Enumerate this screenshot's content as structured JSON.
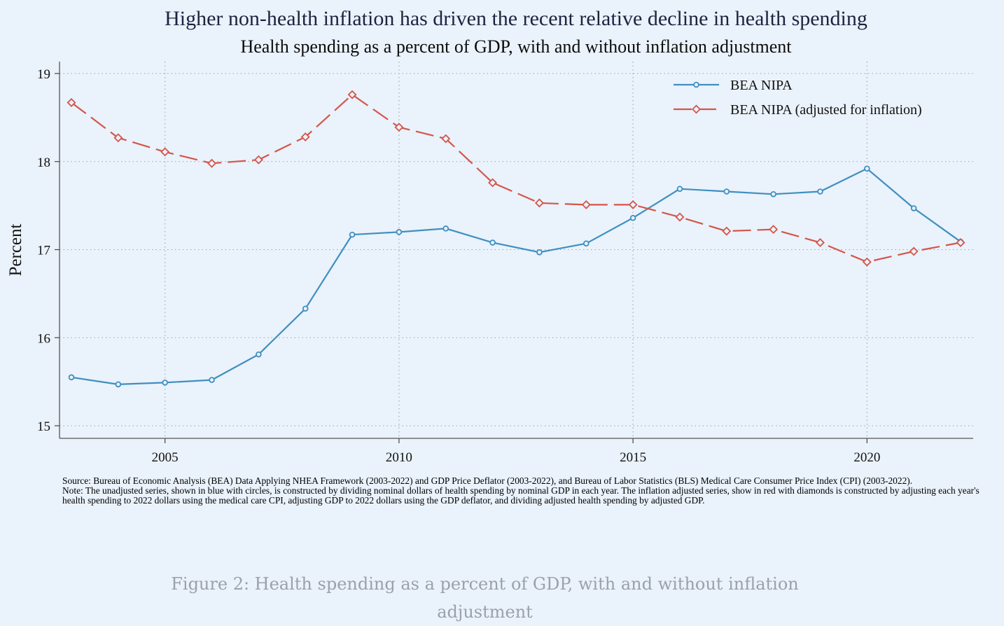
{
  "chart_data": {
    "type": "line",
    "title": "Higher non-health inflation has driven the recent relative decline in health spending",
    "subtitle": "Health spending as a percent of GDP, with and without inflation adjustment",
    "xlabel": "",
    "ylabel": "Percent",
    "xlim": [
      2003,
      2022
    ],
    "ylim": [
      15,
      19
    ],
    "x_ticks": [
      2005,
      2010,
      2015,
      2020
    ],
    "y_ticks": [
      15,
      16,
      17,
      18,
      19
    ],
    "grid": true,
    "legend_position": "top-right",
    "x": [
      2003,
      2004,
      2005,
      2006,
      2007,
      2008,
      2009,
      2010,
      2011,
      2012,
      2013,
      2014,
      2015,
      2016,
      2017,
      2018,
      2019,
      2020,
      2021,
      2022
    ],
    "series": [
      {
        "name": "BEA NIPA",
        "color": "#3f8fc0",
        "marker": "circle",
        "line": "solid",
        "values": [
          15.55,
          15.47,
          15.49,
          15.52,
          15.81,
          16.33,
          17.17,
          17.2,
          17.24,
          17.08,
          16.97,
          17.07,
          17.36,
          17.69,
          17.66,
          17.63,
          17.66,
          17.92,
          17.47,
          17.09
        ]
      },
      {
        "name": "BEA NIPA (adjusted for inflation)",
        "color": "#d4564a",
        "marker": "diamond",
        "line": "dashed",
        "values": [
          18.67,
          18.27,
          18.11,
          17.98,
          18.02,
          18.28,
          18.76,
          18.39,
          18.26,
          17.76,
          17.53,
          17.51,
          17.51,
          17.37,
          17.21,
          17.23,
          17.08,
          16.86,
          16.98,
          17.08
        ]
      }
    ]
  },
  "notes": {
    "source": "Source: Bureau of Economic Analysis (BEA) Data Applying NHEA Framework (2003-2022) and GDP Price Deflator (2003-2022), and Bureau of Labor Statistics (BLS) Medical Care Consumer Price Index (CPI) (2003-2022).",
    "note": "Note: The unadjusted series, shown in blue with circles, is constructed by dividing nominal dollars of health spending by nominal GDP in each year. The inflation adjusted series, show in red with diamonds is constructed by adjusting each year's health spending to 2022 dollars using the medical care CPI, adjusting GDP to 2022 dollars using the GDP deflator, and dividing adjusted health spending by adjusted GDP."
  },
  "caption": "Figure 2: Health spending as a percent of GDP, with and without inflation adjustment"
}
